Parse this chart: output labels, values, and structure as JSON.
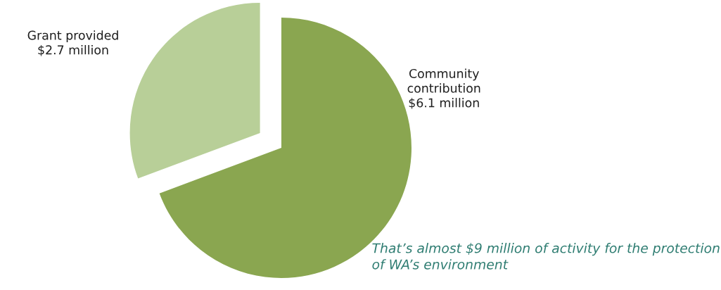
{
  "chart_data": {
    "type": "pie",
    "categories": [
      "Grant provided",
      "Community contribution"
    ],
    "values": [
      2.7,
      6.1
    ],
    "value_labels": [
      "$2.7 million",
      "$6.1 million"
    ],
    "colors": [
      "#b8cf98",
      "#8aa650"
    ],
    "annotations": [
      "That’s almost $9 million of activity for the protection of WA’s environment"
    ]
  }
}
